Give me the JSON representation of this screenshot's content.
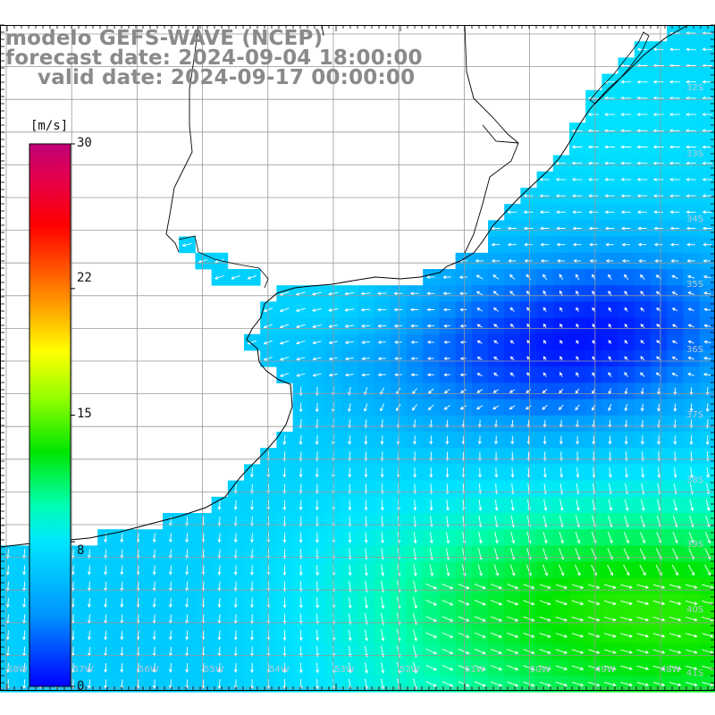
{
  "header": {
    "line1": "modelo GEFS-WAVE (NCEP)",
    "line2": "forecast date: 2024-09-04 18:00:00",
    "line3": "valid date: 2024-09-17 00:00:00"
  },
  "colorbar": {
    "unit": "[m/s]",
    "min": 0,
    "max": 30,
    "ticks": [
      "30",
      "22",
      "15",
      "8",
      "0"
    ],
    "tick_values": [
      30,
      22,
      15,
      8,
      0
    ],
    "colors": [
      "#0000ff",
      "#0096ff",
      "#00e6ff",
      "#00ffb4",
      "#00e600",
      "#96ff00",
      "#ffff00",
      "#ffa000",
      "#ff4600",
      "#ff0000",
      "#e6004b",
      "#c00078"
    ]
  },
  "map": {
    "land_color": "#ffffff",
    "grid_color": "#999999",
    "coast_color": "#000000",
    "arrow_color": "#ffffff",
    "lat_labels": [
      "32S",
      "33S",
      "34S",
      "35S",
      "36S",
      "37S",
      "38S",
      "39S",
      "40S",
      "41S"
    ],
    "lon_labels": [
      "58W",
      "57W",
      "56W",
      "55W",
      "54W",
      "53W",
      "52W",
      "51W",
      "50W",
      "49W",
      "48W"
    ]
  }
}
